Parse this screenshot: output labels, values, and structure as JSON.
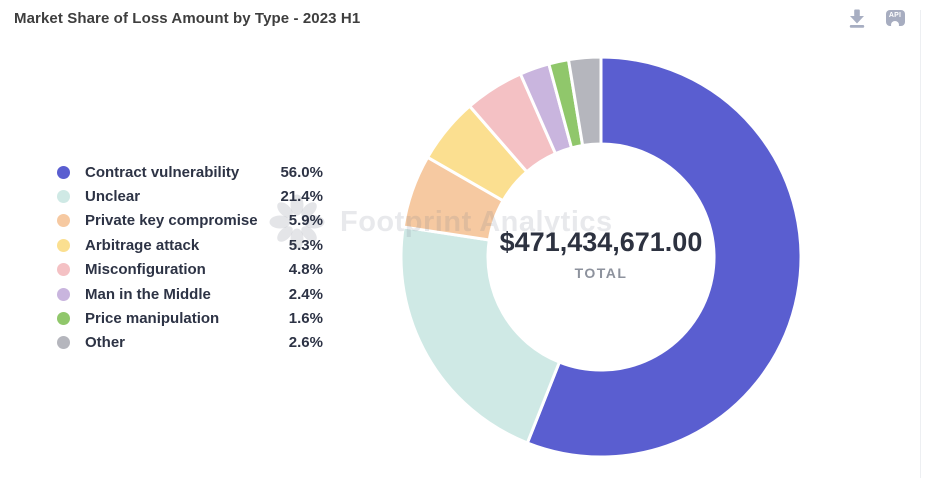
{
  "header": {
    "title": "Market Share of Loss Amount by Type - 2023 H1",
    "icons": [
      {
        "name": "download-icon"
      },
      {
        "name": "api-icon",
        "label": "API"
      }
    ],
    "icon_color": "#a7aec2"
  },
  "watermark": {
    "text": "Footprint Analytics"
  },
  "chart_data": {
    "type": "pie",
    "subtype": "donut",
    "title": "Market Share of Loss Amount by Type - 2023 H1",
    "center_value": "$471,434,671.00",
    "center_label": "TOTAL",
    "legend_position": "left",
    "start_angle_deg": 0,
    "direction": "clockwise",
    "categories": [
      "Contract vulnerability",
      "Unclear",
      "Private key compromise",
      "Arbitrage attack",
      "Misconfiguration",
      "Man in the Middle",
      "Price manipulation",
      "Other"
    ],
    "values": [
      56.0,
      21.4,
      5.9,
      5.3,
      4.8,
      2.4,
      1.6,
      2.6
    ],
    "series": [
      {
        "label": "Contract vulnerability",
        "pct": "56.0%",
        "value": 56.0,
        "color": "#5a5ed0"
      },
      {
        "label": "Unclear",
        "pct": "21.4%",
        "value": 21.4,
        "color": "#cfe9e5"
      },
      {
        "label": "Private key compromise",
        "pct": "5.9%",
        "value": 5.9,
        "color": "#f6c9a1"
      },
      {
        "label": "Arbitrage attack",
        "pct": "5.3%",
        "value": 5.3,
        "color": "#fbdf90"
      },
      {
        "label": "Misconfiguration",
        "pct": "4.8%",
        "value": 4.8,
        "color": "#f4c1c4"
      },
      {
        "label": "Man in the Middle",
        "pct": "2.4%",
        "value": 2.4,
        "color": "#c9b5de"
      },
      {
        "label": "Price manipulation",
        "pct": "1.6%",
        "value": 1.6,
        "color": "#90c76b"
      },
      {
        "label": "Other",
        "pct": "2.6%",
        "value": 2.6,
        "color": "#b5b6bd"
      }
    ]
  }
}
